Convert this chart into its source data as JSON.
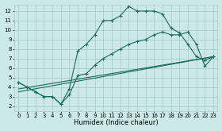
{
  "xlabel": "Humidex (Indice chaleur)",
  "bg_color": "#cce8e8",
  "grid_color": "#aacccc",
  "line_color": "#1a6b5a",
  "xlim": [
    -0.5,
    23.5
  ],
  "ylim": [
    1.5,
    12.7
  ],
  "xticks": [
    0,
    1,
    2,
    3,
    4,
    5,
    6,
    7,
    8,
    9,
    10,
    11,
    12,
    13,
    14,
    15,
    16,
    17,
    18,
    19,
    20,
    21,
    22,
    23
  ],
  "yticks": [
    2,
    3,
    4,
    5,
    6,
    7,
    8,
    9,
    10,
    11,
    12
  ],
  "curve1_x": [
    0,
    1,
    2,
    3,
    4,
    5,
    6,
    7,
    8,
    9,
    10,
    11,
    12,
    13,
    14,
    15,
    16,
    17,
    18,
    19,
    20,
    21,
    22,
    23
  ],
  "curve1_y": [
    4.5,
    4.0,
    3.5,
    3.0,
    3.0,
    2.2,
    3.8,
    7.8,
    8.5,
    9.5,
    11.0,
    11.0,
    11.5,
    12.5,
    12.0,
    12.0,
    12.0,
    11.7,
    10.2,
    9.7,
    8.5,
    7.2,
    6.8,
    7.2
  ],
  "curve2_x": [
    0,
    1,
    2,
    3,
    4,
    5,
    6,
    7,
    8,
    9,
    10,
    11,
    12,
    13,
    14,
    15,
    16,
    17,
    18,
    19,
    20,
    21,
    22,
    23
  ],
  "curve2_y": [
    4.5,
    4.0,
    3.5,
    3.0,
    3.0,
    2.2,
    3.2,
    5.2,
    5.4,
    6.3,
    7.0,
    7.5,
    8.0,
    8.5,
    8.8,
    9.0,
    9.5,
    9.8,
    9.5,
    9.5,
    9.8,
    8.5,
    6.2,
    7.2
  ],
  "line3_x": [
    0,
    23
  ],
  "line3_y": [
    3.5,
    7.2
  ],
  "line4_x": [
    0,
    23
  ],
  "line4_y": [
    3.8,
    7.2
  ]
}
